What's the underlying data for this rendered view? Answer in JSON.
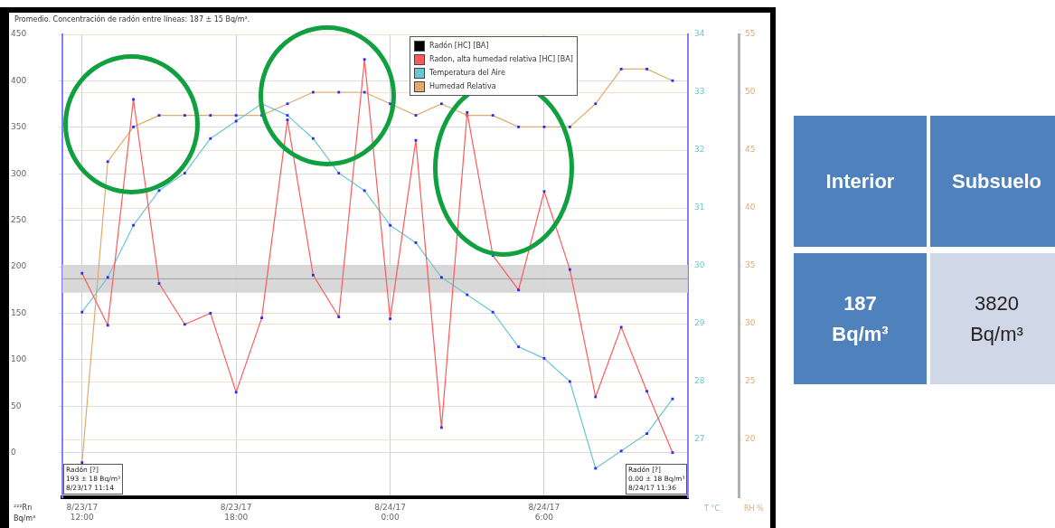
{
  "chart_data": [
    {
      "type": "line",
      "title": "Promedio. Concentración de radón entre líneas: 187 ± 15 Bq/m³.",
      "ylabel": "²²²Rn Bq/m³",
      "y2label": "T °C",
      "y3label": "RH %",
      "x": [
        "--08-23T12:00",
        "--08-23T13:00",
        "--08-23T14:00",
        "--08-23T15:00",
        "--08-23T16:00",
        "--08-23T17:00",
        "--08-23T18:00",
        "--08-23T19:00",
        "--08-23T20:00",
        "--08-23T21:00",
        "--08-23T22:00",
        "--08-23T23:00",
        "--08-24T00:00",
        "--08-24T01:00",
        "--08-24T02:00",
        "--08-24T03:00",
        "--08-24T04:00",
        "--08-24T05:00",
        "--08-24T06:00",
        "--08-24T07:00",
        "--08-24T08:00",
        "--08-24T09:00",
        "--08-24T10:00",
        "--08-24T11:00"
      ],
      "series": [
        {
          "name": "Radón [HC] [BA]",
          "color": "#000000",
          "values": [
            null,
            null,
            null,
            null,
            null,
            null,
            null,
            null,
            null,
            null,
            null,
            null,
            null,
            null,
            null,
            null,
            null,
            null,
            null,
            null,
            null,
            null,
            null,
            null
          ]
        },
        {
          "name": "Radon, alta humedad relativa [HC] [BA]",
          "color": "#ff5a5a",
          "values": [
            193,
            137,
            380,
            182,
            138,
            150,
            65,
            145,
            358,
            191,
            146,
            423,
            144,
            336,
            27,
            366,
            212,
            175,
            281,
            197,
            60,
            135,
            66,
            0
          ]
        },
        {
          "name": "Temperatura del Aire",
          "color": "#6cc6d2",
          "axis": "y2",
          "values": [
            29.2,
            29.8,
            30.7,
            31.3,
            31.6,
            32.2,
            32.5,
            32.8,
            32.6,
            32.2,
            31.6,
            31.3,
            30.7,
            30.4,
            29.8,
            29.5,
            29.2,
            28.6,
            28.4,
            28.0,
            26.5,
            26.8,
            27.1,
            27.7
          ]
        },
        {
          "name": "Humedad Relativa",
          "color": "#e2aa6c",
          "axis": "y3",
          "values": [
            18,
            44,
            47,
            48,
            48,
            48,
            48,
            48,
            49,
            50,
            50,
            50,
            49,
            48,
            49,
            48,
            48,
            47,
            47,
            47,
            49,
            52,
            52,
            51
          ]
        }
      ],
      "xlim": [
        "--08-23T11:14",
        "--08-24T11:36"
      ],
      "xticks": [
        {
          "value": "--08-23T12:00",
          "label": "8/23/17 12:00"
        },
        {
          "value": "--08-23T18:00",
          "label": "8/23/17 18:00"
        },
        {
          "value": "--08-24T00:00",
          "label": "8/24/17 0:00"
        },
        {
          "value": "--08-24T06:00",
          "label": "8/24/17 6:00"
        }
      ],
      "ylim": [
        -48,
        450
      ],
      "yticks": [
        0,
        50,
        100,
        150,
        200,
        250,
        300,
        350,
        400,
        450
      ],
      "y2lim": [
        26,
        34
      ],
      "y2ticks": [
        27,
        28,
        29,
        30,
        31,
        32,
        33,
        34
      ],
      "y3lim": [
        15,
        55
      ],
      "y3ticks": [
        20,
        25,
        30,
        35,
        40,
        45,
        50,
        55
      ],
      "ref_lines": [
        {
          "axis": "y",
          "value": 187,
          "color": "#a0a0a0"
        }
      ],
      "bands": [
        {
          "axis": "y",
          "from": 172,
          "to": 202,
          "color": "#d4d4d4"
        }
      ],
      "annotations": [
        "Radón [?]\n193 ± 18 Bq/m³\n8/23/17 11:14",
        "Radón [?]\n0.00 ± 18 Bq/m³\n8/24/17 11:36"
      ],
      "grid": true,
      "legend": "top right",
      "marker": "square",
      "line_style": "solid"
    },
    {
      "type": "other",
      "categories": [
        "Interior",
        "Subsuelo"
      ],
      "annotations": [
        "187 Bq/m³",
        "3820 Bq/m³"
      ]
    }
  ]
}
